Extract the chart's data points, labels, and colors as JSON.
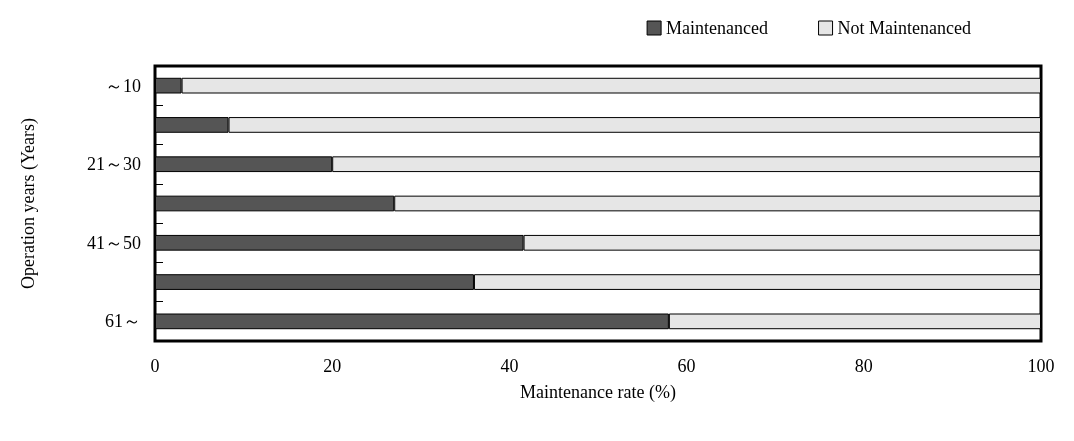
{
  "chart_data": {
    "type": "bar",
    "orientation": "horizontal",
    "stacked": true,
    "xlabel": "Maintenance rate (%)",
    "ylabel": "Operation years (Years)",
    "categories": [
      "～10",
      null,
      "21～30",
      null,
      "41～50",
      null,
      "61～"
    ],
    "series": [
      {
        "name": "Maintenanced",
        "color": "#555555",
        "values": [
          3,
          8.3,
          20,
          27,
          41.6,
          36,
          58
        ]
      },
      {
        "name": "Not Maintenanced",
        "color": "#e6e6e6",
        "values": [
          97,
          91.7,
          80,
          73,
          58.4,
          64,
          42
        ]
      }
    ],
    "xlim": [
      0,
      100
    ],
    "xticks": [
      0,
      20,
      40,
      60,
      80,
      100
    ],
    "grid": false,
    "legend": "top right"
  }
}
